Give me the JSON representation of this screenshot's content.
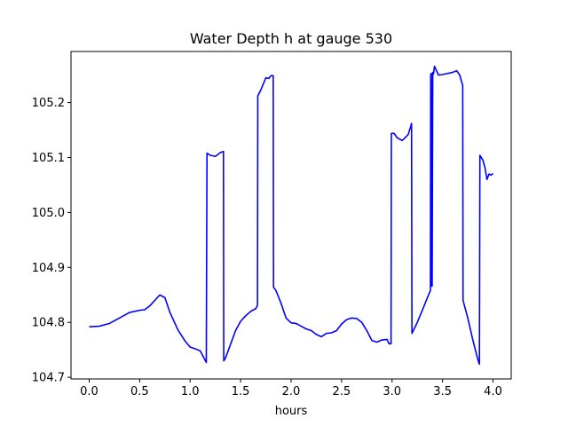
{
  "chart_data": {
    "type": "line",
    "title": "Water Depth h at gauge 530",
    "xlabel": "hours",
    "ylabel": "",
    "xlim": [
      -0.18,
      4.18
    ],
    "ylim": [
      104.697,
      105.293
    ],
    "xticks": [
      0.0,
      0.5,
      1.0,
      1.5,
      2.0,
      2.5,
      3.0,
      3.5,
      4.0
    ],
    "xtick_labels": [
      "0.0",
      "0.5",
      "1.0",
      "1.5",
      "2.0",
      "2.5",
      "3.0",
      "3.5",
      "4.0"
    ],
    "yticks": [
      104.7,
      104.8,
      104.9,
      105.0,
      105.1,
      105.2
    ],
    "ytick_labels": [
      "104.7",
      "104.8",
      "104.9",
      "105.0",
      "105.1",
      "105.2"
    ],
    "grid": false,
    "legend": "none",
    "series": [
      {
        "color": "#0000ff",
        "points": [
          [
            0.0,
            104.792
          ],
          [
            0.1,
            104.793
          ],
          [
            0.2,
            104.798
          ],
          [
            0.3,
            104.808
          ],
          [
            0.4,
            104.818
          ],
          [
            0.5,
            104.822
          ],
          [
            0.55,
            104.823
          ],
          [
            0.6,
            104.83
          ],
          [
            0.7,
            104.85
          ],
          [
            0.75,
            104.845
          ],
          [
            0.8,
            104.818
          ],
          [
            0.88,
            104.786
          ],
          [
            0.95,
            104.766
          ],
          [
            1.0,
            104.755
          ],
          [
            1.05,
            104.752
          ],
          [
            1.1,
            104.748
          ],
          [
            1.16,
            104.727
          ],
          [
            1.167,
            105.108
          ],
          [
            1.2,
            105.104
          ],
          [
            1.25,
            105.102
          ],
          [
            1.3,
            105.109
          ],
          [
            1.33,
            105.111
          ],
          [
            1.333,
            104.73
          ],
          [
            1.35,
            104.735
          ],
          [
            1.4,
            104.76
          ],
          [
            1.45,
            104.785
          ],
          [
            1.5,
            104.802
          ],
          [
            1.55,
            104.812
          ],
          [
            1.6,
            104.82
          ],
          [
            1.65,
            104.825
          ],
          [
            1.667,
            104.831
          ],
          [
            1.67,
            105.212
          ],
          [
            1.7,
            105.223
          ],
          [
            1.75,
            105.245
          ],
          [
            1.78,
            105.244
          ],
          [
            1.8,
            105.249
          ],
          [
            1.823,
            105.249
          ],
          [
            1.826,
            104.864
          ],
          [
            1.85,
            104.858
          ],
          [
            1.9,
            104.835
          ],
          [
            1.95,
            104.808
          ],
          [
            2.0,
            104.799
          ],
          [
            2.05,
            104.798
          ],
          [
            2.1,
            104.793
          ],
          [
            2.15,
            104.788
          ],
          [
            2.2,
            104.785
          ],
          [
            2.25,
            104.778
          ],
          [
            2.3,
            104.774
          ],
          [
            2.35,
            104.78
          ],
          [
            2.4,
            104.781
          ],
          [
            2.45,
            104.785
          ],
          [
            2.5,
            104.797
          ],
          [
            2.55,
            104.805
          ],
          [
            2.6,
            104.808
          ],
          [
            2.65,
            104.807
          ],
          [
            2.7,
            104.8
          ],
          [
            2.75,
            104.785
          ],
          [
            2.8,
            104.767
          ],
          [
            2.85,
            104.764
          ],
          [
            2.9,
            104.768
          ],
          [
            2.95,
            104.769
          ],
          [
            2.97,
            104.761
          ],
          [
            2.99,
            104.761
          ],
          [
            2.993,
            105.144
          ],
          [
            3.02,
            105.144
          ],
          [
            3.05,
            105.136
          ],
          [
            3.1,
            105.131
          ],
          [
            3.13,
            105.136
          ],
          [
            3.16,
            105.142
          ],
          [
            3.18,
            105.154
          ],
          [
            3.193,
            105.162
          ],
          [
            3.197,
            104.78
          ],
          [
            3.25,
            104.8
          ],
          [
            3.3,
            104.822
          ],
          [
            3.35,
            104.845
          ],
          [
            3.38,
            104.858
          ],
          [
            3.383,
            105.25
          ],
          [
            3.388,
            105.253
          ],
          [
            3.392,
            104.866
          ],
          [
            3.397,
            104.866
          ],
          [
            3.403,
            105.255
          ],
          [
            3.41,
            105.252
          ],
          [
            3.42,
            105.266
          ],
          [
            3.44,
            105.258
          ],
          [
            3.46,
            105.25
          ],
          [
            3.5,
            105.251
          ],
          [
            3.55,
            105.253
          ],
          [
            3.6,
            105.255
          ],
          [
            3.64,
            105.258
          ],
          [
            3.67,
            105.25
          ],
          [
            3.7,
            105.231
          ],
          [
            3.703,
            104.84
          ],
          [
            3.75,
            104.808
          ],
          [
            3.8,
            104.768
          ],
          [
            3.85,
            104.732
          ],
          [
            3.865,
            104.724
          ],
          [
            3.87,
            105.104
          ],
          [
            3.9,
            105.095
          ],
          [
            3.92,
            105.082
          ],
          [
            3.94,
            105.06
          ],
          [
            3.96,
            105.07
          ],
          [
            3.98,
            105.068
          ],
          [
            4.0,
            105.071
          ]
        ]
      }
    ]
  }
}
